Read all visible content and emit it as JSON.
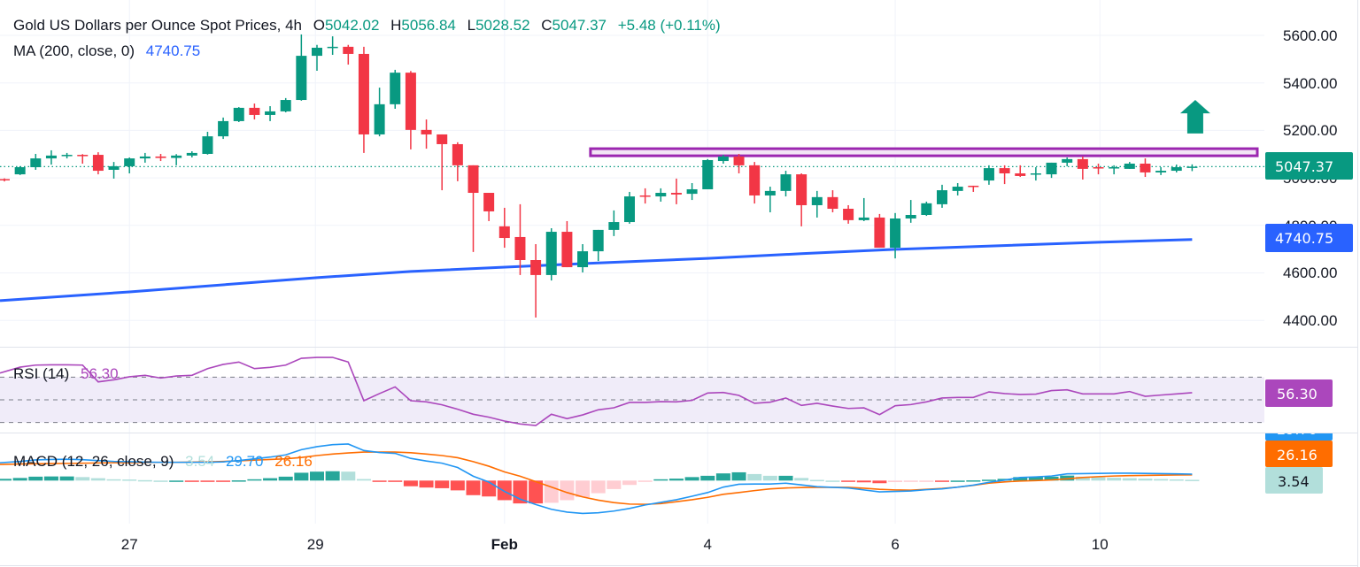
{
  "legend": {
    "title": "Gold US Dollars per Ounce Spot Prices, 4h",
    "o_label": "O",
    "o_value": "5042.02",
    "h_label": "H",
    "h_value": "5056.84",
    "l_label": "L",
    "l_value": "5028.52",
    "c_label": "C",
    "c_value": "5047.37",
    "change": "+5.48 (+0.11%)",
    "ma_label": "MA (200, close, 0)",
    "ma_value": "4740.75",
    "rsi_label": "RSI (14)",
    "rsi_value": "56.30",
    "macd_label": "MACD (12, 26, close, 9)",
    "macd_hist_value": "3.54",
    "macd_value": "29.70",
    "macd_signal_value": "26.16"
  },
  "price_axis": {
    "ticks": [
      "5600.00",
      "5400.00",
      "5200.00",
      "5000.00",
      "4800.00",
      "4600.00",
      "4400.00"
    ],
    "last_price_tag": "5047.37",
    "ma_tag": "4740.75"
  },
  "rsi_axis": {
    "tag": "56.30"
  },
  "macd_axis": {
    "macd_tag": "29.70",
    "signal_tag": "26.16",
    "hist_tag": "3.54"
  },
  "time_axis": {
    "labels": [
      {
        "text": "27",
        "index": 8
      },
      {
        "text": "29",
        "index": 19.9
      },
      {
        "text": "Feb",
        "index": 32,
        "bold": true
      },
      {
        "text": "4",
        "index": 45
      },
      {
        "text": "6",
        "index": 57
      },
      {
        "text": "10",
        "index": 70.1
      }
    ]
  },
  "colors": {
    "up": "#089981",
    "down": "#f23645",
    "ma": "#2962ff",
    "rsi": "#ab47bc",
    "macd": "#2196f3",
    "signal": "#ff6d00",
    "hist_up_strong": "#26a69a",
    "hist_up_weak": "#b2dfdb",
    "hist_down_strong": "#ff5252",
    "hist_down_weak": "#ffcdd2",
    "resistance": "#9c27b0",
    "arrow": "#089981"
  },
  "chart_data": [
    {
      "type": "candlestick",
      "title": "Gold US Dollars per Ounce Spot Prices, 4h",
      "ylim": [
        4289,
        5749
      ],
      "grid": true,
      "ohlc_fields": [
        "open",
        "high",
        "low",
        "close"
      ],
      "candles": [
        [
          4995,
          4998,
          4985,
          4990
        ],
        [
          5015,
          5049,
          5012,
          5045
        ],
        [
          5045,
          5101,
          5034,
          5082
        ],
        [
          5082,
          5116,
          5056,
          5094
        ],
        [
          5094,
          5105,
          5082,
          5097
        ],
        [
          5097,
          5100,
          5060,
          5095
        ],
        [
          5097,
          5108,
          5015,
          5030
        ],
        [
          5034,
          5067,
          4997,
          5049
        ],
        [
          5049,
          5086,
          5019,
          5082
        ],
        [
          5082,
          5105,
          5064,
          5090
        ],
        [
          5090,
          5101,
          5071,
          5084
        ],
        [
          5084,
          5100,
          5053,
          5094
        ],
        [
          5094,
          5112,
          5086,
          5105
        ],
        [
          5101,
          5194,
          5098,
          5175
        ],
        [
          5175,
          5254,
          5164,
          5239
        ],
        [
          5239,
          5298,
          5235,
          5295
        ],
        [
          5295,
          5313,
          5246,
          5265
        ],
        [
          5265,
          5302,
          5239,
          5280
        ],
        [
          5280,
          5336,
          5276,
          5328
        ],
        [
          5328,
          5604,
          5325,
          5514
        ],
        [
          5514,
          5560,
          5451,
          5548
        ],
        [
          5548,
          5596,
          5518,
          5552
        ],
        [
          5552,
          5560,
          5477,
          5522
        ],
        [
          5522,
          5552,
          5105,
          5183
        ],
        [
          5183,
          5380,
          5175,
          5310
        ],
        [
          5310,
          5455,
          5291,
          5443
        ],
        [
          5443,
          5450,
          5120,
          5202
        ],
        [
          5202,
          5246,
          5123,
          5183
        ],
        [
          5183,
          5183,
          4948,
          5142
        ],
        [
          5142,
          5150,
          4986,
          5053
        ],
        [
          5053,
          5053,
          4688,
          4937
        ],
        [
          4937,
          4937,
          4818,
          4859
        ],
        [
          4796,
          4874,
          4706,
          4747
        ],
        [
          4751,
          4889,
          4591,
          4654
        ],
        [
          4654,
          4721,
          4412,
          4591
        ],
        [
          4591,
          4788,
          4568,
          4773
        ],
        [
          4773,
          4818,
          4624,
          4624
        ],
        [
          4624,
          4721,
          4602,
          4691
        ],
        [
          4691,
          4781,
          4650,
          4781
        ],
        [
          4781,
          4863,
          4755,
          4814
        ],
        [
          4814,
          4941,
          4807,
          4922
        ],
        [
          4926,
          4956,
          4892,
          4922
        ],
        [
          4922,
          4956,
          4900,
          4937
        ],
        [
          4937,
          4997,
          4889,
          4930
        ],
        [
          4933,
          4978,
          4907,
          4952
        ],
        [
          4952,
          5079,
          4952,
          5075
        ],
        [
          5071,
          5097,
          5060,
          5090
        ],
        [
          5090,
          5101,
          5019,
          5053
        ],
        [
          5053,
          5067,
          4892,
          4926
        ],
        [
          4926,
          4963,
          4855,
          4945
        ],
        [
          4945,
          5030,
          4922,
          5015
        ],
        [
          5015,
          5019,
          4796,
          4885
        ],
        [
          4885,
          4945,
          4833,
          4919
        ],
        [
          4919,
          4948,
          4855,
          4870
        ],
        [
          4870,
          4885,
          4807,
          4822
        ],
        [
          4822,
          4915,
          4818,
          4833
        ],
        [
          4833,
          4848,
          4706,
          4706
        ],
        [
          4706,
          4852,
          4661,
          4829
        ],
        [
          4829,
          4907,
          4811,
          4844
        ],
        [
          4844,
          4900,
          4840,
          4893
        ],
        [
          4889,
          4971,
          4874,
          4948
        ],
        [
          4945,
          4978,
          4926,
          4963
        ],
        [
          4967,
          4967,
          4941,
          4963
        ],
        [
          4989,
          5053,
          4971,
          5041
        ],
        [
          5041,
          5053,
          4974,
          5019
        ],
        [
          5019,
          5053,
          5004,
          5008
        ],
        [
          5015,
          5045,
          4989,
          5019
        ],
        [
          5015,
          5064,
          5000,
          5064
        ],
        [
          5064,
          5086,
          5049,
          5079
        ],
        [
          5079,
          5090,
          4993,
          5038
        ],
        [
          5045,
          5060,
          5015,
          5041
        ],
        [
          5041,
          5053,
          5015,
          5045
        ],
        [
          5038,
          5067,
          5038,
          5060
        ],
        [
          5060,
          5082,
          5004,
          5023
        ],
        [
          5023,
          5045,
          5012,
          5030
        ],
        [
          5030,
          5056,
          5023,
          5045
        ],
        [
          5042.02,
          5056.84,
          5028.52,
          5047.37
        ]
      ],
      "last_price": 5047.37,
      "moving_average": {
        "name": "MA (200, close, 0)",
        "points": [
          [
            0,
            4483
          ],
          [
            8,
            4520
          ],
          [
            20,
            4580
          ],
          [
            26,
            4606
          ],
          [
            37,
            4639
          ],
          [
            45,
            4661
          ],
          [
            51,
            4681
          ],
          [
            57,
            4699
          ],
          [
            70,
            4729
          ],
          [
            76,
            4740.75
          ]
        ]
      },
      "resistance_zone": {
        "price_low": 5093,
        "price_high": 5123,
        "start_index": 37.5
      },
      "arrow": {
        "direction": "up",
        "index": 76.2,
        "price_base": 5187,
        "price_tip": 5328
      }
    },
    {
      "type": "line",
      "title": "RSI (14)",
      "ylim": [
        17,
        96
      ],
      "levels": [
        70,
        50,
        30
      ],
      "values": [
        73.6,
        78.8,
        80.6,
        80.8,
        80.8,
        80.6,
        65.8,
        67.6,
        70.3,
        71.6,
        69.2,
        71.0,
        71.6,
        77.5,
        81.2,
        83.3,
        77.5,
        78.6,
        80.6,
        86.6,
        87.4,
        87.4,
        83.3,
        49.2,
        55.5,
        61.4,
        49.2,
        48.2,
        45.6,
        41.7,
        37.3,
        34.7,
        31.3,
        28.7,
        27.4,
        37.3,
        33.4,
        36.7,
        41.2,
        43.0,
        47.7,
        47.7,
        48.4,
        48.2,
        49.5,
        56.0,
        56.5,
        53.9,
        46.9,
        47.9,
        51.6,
        45.1,
        46.9,
        44.5,
        42.4,
        42.9,
        37.0,
        44.8,
        45.8,
        48.2,
        51.6,
        52.1,
        52.1,
        57.0,
        55.5,
        54.7,
        55.0,
        58.1,
        58.8,
        55.2,
        55.2,
        55.2,
        57.3,
        53.1,
        54.2,
        55.2,
        56.3
      ]
    },
    {
      "type": "line",
      "title": "MACD (12, 26, close, 9)",
      "series": [
        {
          "name": "MACD",
          "values": [
            82,
            88,
            95,
            97,
            98,
            96,
            92,
            88,
            87,
            85,
            84,
            84,
            84,
            84,
            86,
            92,
            100,
            108,
            118,
            142,
            156,
            165,
            168,
            138,
            129,
            125,
            102,
            90,
            80,
            60,
            20,
            -7,
            -50,
            -85,
            -110,
            -132,
            -145,
            -151,
            -148,
            -140,
            -128,
            -112,
            -100,
            -88,
            -72,
            -55,
            -30,
            -17,
            -16,
            -16,
            -12,
            -20,
            -28,
            -31,
            -34,
            -43,
            -52,
            -50,
            -48,
            -42,
            -38,
            -30,
            -21,
            -8,
            2,
            14,
            17,
            21,
            31,
            32,
            33,
            34,
            34,
            33,
            32,
            31,
            29.7
          ]
        },
        {
          "name": "Signal",
          "values": [
            74,
            76,
            77,
            78,
            79,
            80,
            81,
            82,
            82,
            83,
            84,
            84,
            85,
            86,
            88,
            91,
            94,
            97,
            100,
            106,
            115,
            122,
            127,
            131,
            131,
            131,
            128,
            122,
            115,
            105,
            87,
            66,
            40,
            20,
            -5,
            -30,
            -55,
            -75,
            -90,
            -101,
            -108,
            -109,
            -106,
            -97,
            -88,
            -77,
            -63,
            -55,
            -46,
            -38,
            -34,
            -32,
            -31,
            -31,
            -31,
            -35,
            -40,
            -43,
            -44,
            -40,
            -36,
            -30,
            -22,
            -12,
            -6,
            -2,
            0,
            3,
            8,
            14,
            18,
            21,
            23,
            24,
            25,
            25.6,
            26.16
          ]
        }
      ],
      "histogram": "MACD minus Signal"
    }
  ]
}
